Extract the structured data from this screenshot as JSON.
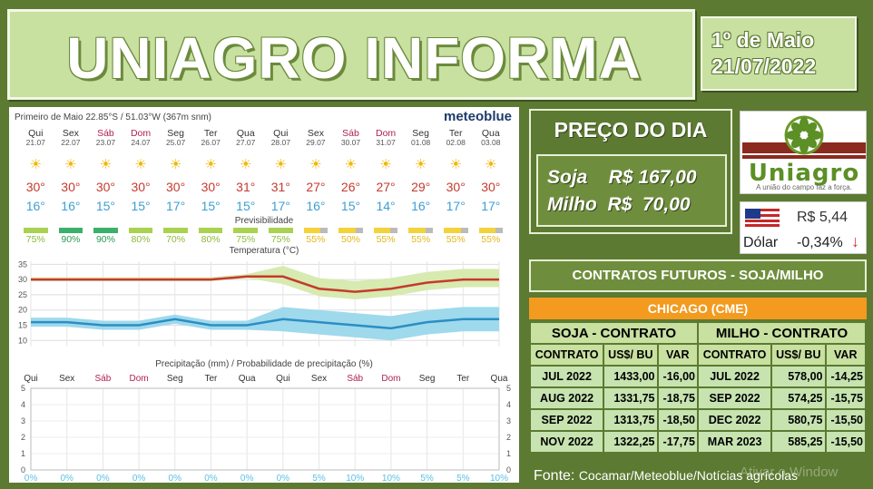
{
  "header": {
    "title": "UNIAGRO INFORMA",
    "location": "1º de Maio",
    "date": "21/07/2022"
  },
  "forecast": {
    "location_line": "Primeiro de Maio  22.85°S / 51.03°W (367m snm)",
    "brand": "meteoblue",
    "days": [
      {
        "name": "Qui",
        "date": "21.07",
        "hi": "30°",
        "lo": "16°",
        "vis": "75%",
        "weekend": false
      },
      {
        "name": "Sex",
        "date": "22.07",
        "hi": "30°",
        "lo": "16°",
        "vis": "90%",
        "weekend": false
      },
      {
        "name": "Sáb",
        "date": "23.07",
        "hi": "30°",
        "lo": "15°",
        "vis": "90%",
        "weekend": true
      },
      {
        "name": "Dom",
        "date": "24.07",
        "hi": "30°",
        "lo": "15°",
        "vis": "80%",
        "weekend": true
      },
      {
        "name": "Seg",
        "date": "25.07",
        "hi": "30°",
        "lo": "17°",
        "vis": "70%",
        "weekend": false
      },
      {
        "name": "Ter",
        "date": "26.07",
        "hi": "30°",
        "lo": "15°",
        "vis": "80%",
        "weekend": false
      },
      {
        "name": "Qua",
        "date": "27.07",
        "hi": "31°",
        "lo": "15°",
        "vis": "75%",
        "weekend": false
      },
      {
        "name": "Qui",
        "date": "28.07",
        "hi": "31°",
        "lo": "17°",
        "vis": "75%",
        "weekend": false
      },
      {
        "name": "Sex",
        "date": "29.07",
        "hi": "27°",
        "lo": "16°",
        "vis": "55%",
        "weekend": false
      },
      {
        "name": "Sáb",
        "date": "30.07",
        "hi": "26°",
        "lo": "15°",
        "vis": "50%",
        "weekend": true
      },
      {
        "name": "Dom",
        "date": "31.07",
        "hi": "27°",
        "lo": "14°",
        "vis": "55%",
        "weekend": true
      },
      {
        "name": "Seg",
        "date": "01.08",
        "hi": "29°",
        "lo": "16°",
        "vis": "55%",
        "weekend": false
      },
      {
        "name": "Ter",
        "date": "02.08",
        "hi": "30°",
        "lo": "17°",
        "vis": "55%",
        "weekend": false
      },
      {
        "name": "Qua",
        "date": "03.08",
        "hi": "30°",
        "lo": "17°",
        "vis": "55%",
        "weekend": false
      }
    ],
    "previsibilidade_label": "Previsibilidade",
    "temp_label": "Temperatura (°C)",
    "precip_label": "Precipitação (mm) / Probabilidade de precipitação (%)",
    "precip_probs": [
      "0%",
      "0%",
      "0%",
      "0%",
      "0%",
      "0%",
      "0%",
      "0%",
      "5%",
      "10%",
      "10%",
      "5%",
      "5%",
      "10%"
    ]
  },
  "chart_data": [
    {
      "type": "line",
      "title": "Temperatura (°C)",
      "yticks": [
        10,
        15,
        20,
        25,
        30,
        35
      ],
      "ylim": [
        8,
        36
      ],
      "categories": [
        "Qui",
        "Sex",
        "Sáb",
        "Dom",
        "Seg",
        "Ter",
        "Qua",
        "Qui",
        "Sex",
        "Sáb",
        "Dom",
        "Seg",
        "Ter",
        "Qua"
      ],
      "series": [
        {
          "values": [
            30,
            30,
            30,
            30,
            30,
            30,
            31,
            31,
            27,
            26,
            27,
            29,
            30,
            30
          ]
        },
        {
          "values": [
            16,
            16,
            15,
            15,
            17,
            15,
            15,
            17,
            16,
            15,
            14,
            16,
            17,
            17
          ]
        }
      ]
    },
    {
      "type": "bar",
      "title": "Precipitação (mm) / Probabilidade de precipitação (%)",
      "yticks": [
        0,
        1,
        2,
        3,
        4,
        5
      ],
      "ylim": [
        0,
        5
      ],
      "categories": [
        "Qui",
        "Sex",
        "Sáb",
        "Dom",
        "Seg",
        "Ter",
        "Qua",
        "Qui",
        "Sex",
        "Sáb",
        "Dom",
        "Seg",
        "Ter",
        "Qua"
      ],
      "values": [
        0,
        0,
        0,
        0,
        0,
        0,
        0,
        0,
        0,
        0,
        0,
        0,
        0,
        0
      ]
    }
  ],
  "preco": {
    "title": "PREÇO DO DIA",
    "soja": "Soja    R$ 167,00",
    "milho": "Milho  R$  70,00"
  },
  "logo": {
    "name": "Uniagro",
    "tagline": "A união do campo faz a força."
  },
  "dolar": {
    "value": "R$ 5,44",
    "label": "Dólar",
    "change": "-0,34%",
    "colors": {
      "down": "#d32f2f"
    }
  },
  "futuros": {
    "title": "CONTRATOS  FUTUROS  - SOJA/MILHO",
    "exchange": "CHICAGO (CME)",
    "soja_header": "SOJA - CONTRATO",
    "milho_header": "MILHO - CONTRATO",
    "cols": [
      "CONTRATO",
      "US$/ BU",
      "VAR",
      "CONTRATO",
      "US$/ BU",
      "VAR"
    ],
    "rows": [
      [
        "JUL 2022",
        "1433,00",
        "-16,00",
        "JUL 2022",
        "578,00",
        "-14,25"
      ],
      [
        "AUG 2022",
        "1331,75",
        "-18,75",
        "SEP 2022",
        "574,25",
        "-15,75"
      ],
      [
        "SEP 2022",
        "1313,75",
        "-18,50",
        "DEC 2022",
        "580,75",
        "-15,50"
      ],
      [
        "NOV 2022",
        "1322,25",
        "-17,75",
        "MAR 2023",
        "585,25",
        "-15,50"
      ]
    ]
  },
  "fonte": {
    "label": "Fonte:",
    "text": "Cocamar/Meteoblue/Notícias agrícolas"
  },
  "watermark": "Ativar o Window"
}
